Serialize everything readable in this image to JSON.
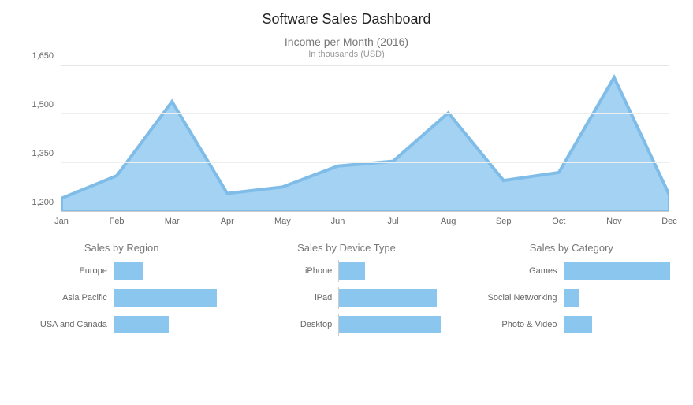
{
  "title": "Software Sales Dashboard",
  "area_chart": {
    "type": "area",
    "title": "Income per Month (2016)",
    "subtitle": "In thousands (USD)",
    "categories": [
      "Jan",
      "Feb",
      "Mar",
      "Apr",
      "May",
      "Jun",
      "Jul",
      "Aug",
      "Sep",
      "Oct",
      "Nov",
      "Dec"
    ],
    "values": [
      1240,
      1310,
      1540,
      1255,
      1275,
      1340,
      1355,
      1505,
      1295,
      1320,
      1615,
      1250
    ],
    "ylim": [
      1200,
      1650
    ],
    "yticks": [
      1200,
      1350,
      1500,
      1650
    ],
    "fill_color": "#a3d2f2",
    "stroke_color": "#7fbde8",
    "grid_color": "#eeeeee",
    "axis_color": "#cccccc",
    "background_color": "#ffffff",
    "label_fontsize": 11,
    "label_color": "#666666",
    "title_fontsize": 14,
    "title_color": "#777777"
  },
  "mini_charts": [
    {
      "type": "bar-horizontal",
      "title": "Sales by Region",
      "bar_color": "#8bc6ee",
      "max": 100,
      "items": [
        {
          "label": "Europe",
          "value": 26
        },
        {
          "label": "Asia Pacific",
          "value": 95
        },
        {
          "label": "USA and Canada",
          "value": 50
        }
      ]
    },
    {
      "type": "bar-horizontal",
      "title": "Sales by Device Type",
      "bar_color": "#8bc6ee",
      "max": 100,
      "items": [
        {
          "label": "iPhone",
          "value": 24
        },
        {
          "label": "iPad",
          "value": 90
        },
        {
          "label": "Desktop",
          "value": 94
        }
      ]
    },
    {
      "type": "bar-horizontal",
      "title": "Sales by Category",
      "bar_color": "#8bc6ee",
      "max": 100,
      "items": [
        {
          "label": "Games",
          "value": 98
        },
        {
          "label": "Social Networking",
          "value": 14
        },
        {
          "label": "Photo & Video",
          "value": 26
        }
      ]
    }
  ],
  "fonts": {
    "family": "Verdana",
    "title_size": 18,
    "title_color": "#222222"
  }
}
